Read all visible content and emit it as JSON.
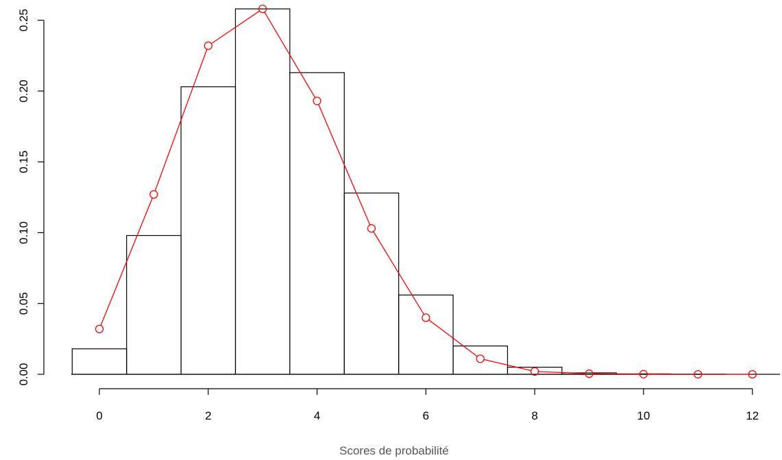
{
  "chart_data": {
    "type": "bar",
    "title": "",
    "xlabel": "Scores de probabilité",
    "ylabel": "",
    "xlim": [
      -0.5,
      12.5
    ],
    "ylim": [
      0,
      0.26
    ],
    "x_ticks": [
      "0",
      "2",
      "4",
      "6",
      "8",
      "10",
      "12"
    ],
    "y_ticks": [
      "0.00",
      "0.05",
      "0.10",
      "0.15",
      "0.20",
      "0.25"
    ],
    "grid": false,
    "legend": "none",
    "histogram": {
      "x": [
        0,
        1,
        2,
        3,
        4,
        5,
        6,
        7,
        8,
        9,
        10,
        11,
        12
      ],
      "values": [
        0.018,
        0.098,
        0.203,
        0.258,
        0.213,
        0.128,
        0.056,
        0.02,
        0.005,
        0.001,
        0.0003,
        0.0001,
        0.0
      ],
      "color": "#000000"
    },
    "fitted_line": {
      "x": [
        0,
        1,
        2,
        3,
        4,
        5,
        6,
        7,
        8,
        9,
        10,
        11,
        12
      ],
      "values": [
        0.032,
        0.127,
        0.232,
        0.258,
        0.193,
        0.103,
        0.04,
        0.011,
        0.002,
        0.0004,
        0.0001,
        0.0,
        0.0
      ],
      "color": "#ff0000"
    }
  }
}
